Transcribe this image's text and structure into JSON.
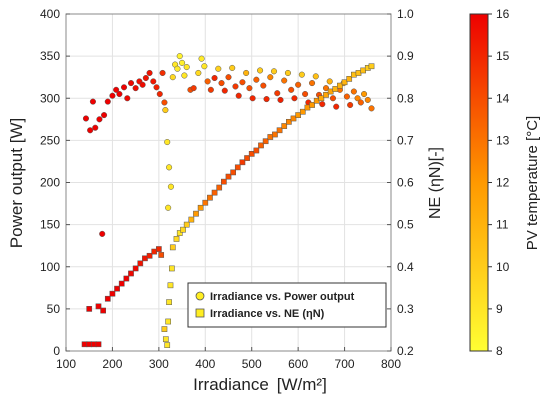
{
  "chart_data": {
    "type": "scatter",
    "xlabel": "Irradiance",
    "xunit": "[W/m²]",
    "ylabel_left": "Power output [W]",
    "ylabel_right": "NE (ηN)[-]",
    "colorbar_label": "PV temperature [°C]",
    "xlim": [
      100,
      800
    ],
    "ylim_left": [
      0,
      400
    ],
    "ylim_right": [
      0.2,
      1.0
    ],
    "x_ticks": [
      100,
      200,
      300,
      400,
      500,
      600,
      700,
      800
    ],
    "y_left_ticks": [
      0,
      50,
      100,
      150,
      200,
      250,
      300,
      350,
      400
    ],
    "y_right_ticks": [
      0.2,
      0.3,
      0.4,
      0.5,
      0.6,
      0.7,
      0.8,
      0.9,
      1.0
    ],
    "colorbar_ticks": [
      8,
      9,
      10,
      11,
      12,
      13,
      14,
      15,
      16
    ],
    "colorbar_range": [
      8,
      16
    ],
    "colors": {
      "low": "#ffff33",
      "mid": "#ff9900",
      "high": "#ee0000",
      "marker_edge": "#555555"
    },
    "legend": [
      {
        "label": "Irradiance vs. Power output",
        "marker": "circle"
      },
      {
        "label": "Irradiance vs. NE (ηN)",
        "marker": "square"
      }
    ],
    "series": [
      {
        "name": "Irradiance vs. Power output",
        "marker": "circle",
        "axis": "left",
        "points": [
          [
            143,
            276,
            16
          ],
          [
            152,
            262,
            16
          ],
          [
            158,
            296,
            16
          ],
          [
            163,
            265,
            16
          ],
          [
            172,
            275,
            16
          ],
          [
            178,
            139,
            16
          ],
          [
            182,
            280,
            16
          ],
          [
            190,
            296,
            16
          ],
          [
            200,
            303,
            16
          ],
          [
            208,
            310,
            16
          ],
          [
            215,
            305,
            16
          ],
          [
            225,
            313,
            16
          ],
          [
            232,
            300,
            15.8
          ],
          [
            240,
            318,
            15.8
          ],
          [
            250,
            312,
            15.7
          ],
          [
            258,
            320,
            15.6
          ],
          [
            265,
            316,
            15.7
          ],
          [
            272,
            324,
            15.5
          ],
          [
            280,
            330,
            15.5
          ],
          [
            288,
            320,
            15.4
          ],
          [
            295,
            313,
            15.2
          ],
          [
            302,
            305,
            15
          ],
          [
            308,
            330,
            14.8
          ],
          [
            312,
            295,
            14
          ],
          [
            314,
            286,
            10
          ],
          [
            318,
            248,
            9
          ],
          [
            322,
            218,
            9
          ],
          [
            320,
            170,
            9
          ],
          [
            326,
            195,
            9
          ],
          [
            330,
            325,
            9.5
          ],
          [
            335,
            340,
            9
          ],
          [
            340,
            335,
            8.8
          ],
          [
            345,
            350,
            8.5
          ],
          [
            350,
            342,
            8.6
          ],
          [
            355,
            327,
            9
          ],
          [
            360,
            337,
            9
          ],
          [
            368,
            310,
            14
          ],
          [
            375,
            312,
            14.5
          ],
          [
            385,
            330,
            9.5
          ],
          [
            392,
            347,
            8.8
          ],
          [
            398,
            338,
            9
          ],
          [
            405,
            320,
            13.5
          ],
          [
            412,
            310,
            14.5
          ],
          [
            420,
            324,
            15
          ],
          [
            428,
            335,
            9.8
          ],
          [
            435,
            318,
            14
          ],
          [
            442,
            309,
            15
          ],
          [
            450,
            325,
            14
          ],
          [
            458,
            336,
            10
          ],
          [
            465,
            314,
            14.5
          ],
          [
            472,
            303,
            15
          ],
          [
            480,
            319,
            14
          ],
          [
            488,
            330,
            11
          ],
          [
            495,
            312,
            14
          ],
          [
            502,
            300,
            15
          ],
          [
            510,
            322,
            13.5
          ],
          [
            518,
            333,
            10
          ],
          [
            525,
            315,
            14
          ],
          [
            532,
            299,
            15
          ],
          [
            540,
            325,
            12.5
          ],
          [
            548,
            332,
            10
          ],
          [
            555,
            306,
            14.5
          ],
          [
            562,
            298,
            15.2
          ],
          [
            570,
            321,
            13
          ],
          [
            578,
            330,
            10
          ],
          [
            585,
            310,
            14
          ],
          [
            592,
            300,
            15
          ],
          [
            600,
            316,
            13.5
          ],
          [
            608,
            328,
            10
          ],
          [
            615,
            305,
            14
          ],
          [
            622,
            295,
            15
          ],
          [
            630,
            318,
            13
          ],
          [
            638,
            326,
            10.5
          ],
          [
            645,
            304,
            14
          ],
          [
            652,
            293,
            15
          ],
          [
            660,
            312,
            13
          ],
          [
            668,
            320,
            11
          ],
          [
            675,
            300,
            14
          ],
          [
            682,
            290,
            15
          ],
          [
            690,
            310,
            13
          ],
          [
            698,
            318,
            11.5
          ],
          [
            705,
            302,
            13.5
          ],
          [
            712,
            292,
            14.5
          ],
          [
            720,
            308,
            13
          ],
          [
            728,
            300,
            12.5
          ],
          [
            735,
            295,
            13.5
          ],
          [
            742,
            305,
            12
          ],
          [
            750,
            298,
            12.5
          ],
          [
            758,
            288,
            13
          ]
        ]
      },
      {
        "name": "Irradiance vs. NE (ηN)",
        "marker": "square",
        "axis": "left",
        "points": [
          [
            140,
            8,
            16
          ],
          [
            150,
            8,
            16
          ],
          [
            160,
            8,
            16
          ],
          [
            170,
            8,
            16
          ],
          [
            180,
            48,
            16
          ],
          [
            150,
            50,
            16
          ],
          [
            170,
            53,
            16
          ],
          [
            190,
            62,
            16
          ],
          [
            200,
            68,
            16
          ],
          [
            210,
            74,
            16
          ],
          [
            220,
            80,
            16
          ],
          [
            230,
            86,
            16
          ],
          [
            240,
            92,
            15.8
          ],
          [
            250,
            98,
            15.8
          ],
          [
            260,
            104,
            15.5
          ],
          [
            270,
            110,
            15.5
          ],
          [
            280,
            113,
            15.2
          ],
          [
            290,
            118,
            15
          ],
          [
            300,
            121,
            15
          ],
          [
            305,
            114,
            14
          ],
          [
            312,
            26,
            10
          ],
          [
            315,
            14,
            9
          ],
          [
            318,
            7,
            9
          ],
          [
            320,
            35,
            9
          ],
          [
            322,
            58,
            9
          ],
          [
            325,
            78,
            9
          ],
          [
            328,
            98,
            9
          ],
          [
            330,
            123,
            10
          ],
          [
            338,
            133,
            9.5
          ],
          [
            345,
            140,
            9
          ],
          [
            352,
            144,
            9.5
          ],
          [
            360,
            150,
            10
          ],
          [
            370,
            156,
            11
          ],
          [
            380,
            163,
            12
          ],
          [
            390,
            170,
            12
          ],
          [
            400,
            176,
            13
          ],
          [
            410,
            182,
            13
          ],
          [
            420,
            188,
            13.5
          ],
          [
            430,
            194,
            13.5
          ],
          [
            440,
            201,
            14
          ],
          [
            450,
            207,
            14
          ],
          [
            460,
            212,
            14
          ],
          [
            470,
            218,
            14
          ],
          [
            480,
            224,
            14.5
          ],
          [
            490,
            229,
            14
          ],
          [
            500,
            234,
            14
          ],
          [
            510,
            238,
            14
          ],
          [
            520,
            244,
            13.5
          ],
          [
            530,
            249,
            13.5
          ],
          [
            540,
            254,
            13
          ],
          [
            550,
            257,
            13
          ],
          [
            560,
            262,
            13
          ],
          [
            570,
            267,
            12.5
          ],
          [
            580,
            272,
            12.5
          ],
          [
            590,
            276,
            12.5
          ],
          [
            600,
            280,
            12
          ],
          [
            610,
            284,
            12
          ],
          [
            620,
            289,
            12
          ],
          [
            630,
            292,
            12
          ],
          [
            640,
            297,
            12
          ],
          [
            650,
            300,
            11.5
          ],
          [
            660,
            304,
            11.5
          ],
          [
            670,
            308,
            11.5
          ],
          [
            680,
            311,
            11
          ],
          [
            690,
            315,
            11
          ],
          [
            700,
            319,
            11
          ],
          [
            710,
            323,
            11
          ],
          [
            720,
            328,
            10.5
          ],
          [
            730,
            330,
            10.5
          ],
          [
            740,
            333,
            10.5
          ],
          [
            750,
            336,
            10
          ],
          [
            758,
            338,
            10
          ]
        ]
      }
    ]
  }
}
